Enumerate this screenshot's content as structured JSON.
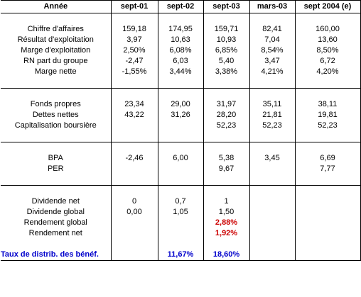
{
  "table": {
    "headers": [
      "Année",
      "sept-01",
      "sept-02",
      "sept-03",
      "mars-03",
      "sept 2004 (e)"
    ],
    "section1": [
      {
        "label": "Chiffre d'affaires",
        "values": [
          "159,18",
          "174,95",
          "159,71",
          "82,41",
          "160,00"
        ]
      },
      {
        "label": "Résultat d'exploitation",
        "values": [
          "3,97",
          "10,63",
          "10,93",
          "7,04",
          "13,60"
        ]
      },
      {
        "label": "Marge d'exploitation",
        "values": [
          "2,50%",
          "6,08%",
          "6,85%",
          "8,54%",
          "8,50%"
        ]
      },
      {
        "label": "RN part du groupe",
        "values": [
          "-2,47",
          "6,03",
          "5,40",
          "3,47",
          "6,72"
        ]
      },
      {
        "label": "Marge nette",
        "values": [
          "-1,55%",
          "3,44%",
          "3,38%",
          "4,21%",
          "4,20%"
        ]
      }
    ],
    "section2": [
      {
        "label": "Fonds propres",
        "values": [
          "23,34",
          "29,00",
          "31,97",
          "35,11",
          "38,11"
        ]
      },
      {
        "label": "Dettes nettes",
        "values": [
          "43,22",
          "31,26",
          "28,20",
          "21,81",
          "19,81"
        ]
      },
      {
        "label": "Capitalisation boursière",
        "values": [
          "",
          "",
          "52,23",
          "52,23",
          "52,23"
        ]
      }
    ],
    "section3": [
      {
        "label": "BPA",
        "values": [
          "-2,46",
          "6,00",
          "5,38",
          "3,45",
          "6,69"
        ]
      },
      {
        "label": "PER",
        "values": [
          "",
          "",
          "9,67",
          "",
          "7,77"
        ]
      }
    ],
    "section4": [
      {
        "label": "Dividende net",
        "values": [
          "0",
          "0,7",
          "1",
          "",
          ""
        ]
      },
      {
        "label": "Dividende global",
        "values": [
          "0,00",
          "1,05",
          "1,50",
          "",
          ""
        ]
      },
      {
        "label": "Rendement global",
        "values": [
          "",
          "",
          "2,88%",
          "",
          ""
        ]
      },
      {
        "label": "Rendement net",
        "values": [
          "",
          "",
          "1,92%",
          "",
          ""
        ]
      }
    ],
    "footer": {
      "label": "Taux de distrib. des bénéf.",
      "values": [
        "",
        "11,67%",
        "18,60%",
        "",
        ""
      ]
    },
    "colors": {
      "highlight_red": "#cc0000",
      "highlight_blue": "#0000cc"
    }
  }
}
